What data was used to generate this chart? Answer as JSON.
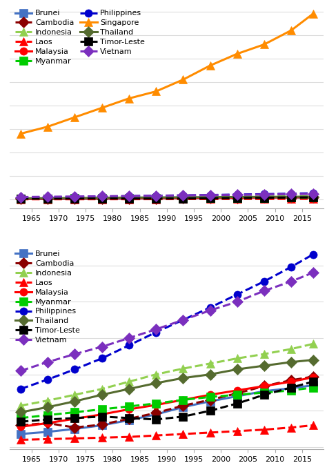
{
  "years": [
    1963,
    1968,
    1973,
    1978,
    1983,
    1988,
    1993,
    1998,
    2003,
    2008,
    2013,
    2017
  ],
  "series_a": {
    "Brunei": [
      18,
      21,
      25,
      30,
      37,
      45,
      55,
      63,
      70,
      77,
      81,
      85
    ],
    "Cambodia": [
      30,
      33,
      27,
      31,
      39,
      47,
      57,
      65,
      74,
      84,
      92,
      97
    ],
    "Indonesia": [
      57,
      64,
      72,
      80,
      90,
      100,
      108,
      115,
      122,
      128,
      135,
      142
    ],
    "Laos": [
      10,
      11,
      12,
      13,
      14,
      16,
      18,
      20,
      22,
      24,
      27,
      30
    ],
    "Malaysia": [
      28,
      33,
      39,
      45,
      52,
      58,
      65,
      72,
      78,
      84,
      90,
      96
    ],
    "Myanmar": [
      40,
      44,
      48,
      52,
      56,
      60,
      65,
      69,
      72,
      75,
      78,
      82
    ],
    "Philippines": [
      80,
      93,
      107,
      122,
      140,
      158,
      175,
      192,
      210,
      228,
      248,
      265
    ],
    "Singapore": [
      2800,
      3100,
      3500,
      3900,
      4300,
      4600,
      5100,
      5700,
      6200,
      6600,
      7200,
      7900
    ],
    "Thailand": [
      48,
      55,
      63,
      72,
      80,
      88,
      95,
      100,
      107,
      112,
      117,
      120
    ],
    "Timor-Leste": [
      35,
      38,
      40,
      42,
      40,
      38,
      42,
      50,
      60,
      72,
      82,
      90
    ],
    "Vietnam": [
      105,
      117,
      128,
      138,
      150,
      162,
      175,
      188,
      200,
      215,
      228,
      240
    ]
  },
  "series_b": {
    "Brunei": [
      18,
      21,
      25,
      30,
      37,
      45,
      55,
      63,
      70,
      77,
      81,
      85
    ],
    "Cambodia": [
      30,
      33,
      27,
      31,
      39,
      47,
      57,
      65,
      74,
      84,
      92,
      97
    ],
    "Indonesia": [
      57,
      64,
      72,
      80,
      90,
      100,
      108,
      115,
      122,
      128,
      135,
      142
    ],
    "Laos": [
      10,
      11,
      12,
      13,
      14,
      16,
      18,
      20,
      22,
      24,
      27,
      30
    ],
    "Malaysia": [
      28,
      33,
      39,
      45,
      52,
      58,
      65,
      72,
      78,
      84,
      90,
      96
    ],
    "Myanmar": [
      40,
      44,
      48,
      52,
      56,
      60,
      65,
      69,
      72,
      75,
      78,
      82
    ],
    "Philippines": [
      80,
      93,
      107,
      122,
      140,
      158,
      175,
      192,
      210,
      228,
      248,
      265
    ],
    "Thailand": [
      48,
      55,
      63,
      72,
      80,
      88,
      95,
      100,
      107,
      112,
      117,
      120
    ],
    "Timor-Leste": [
      35,
      38,
      40,
      42,
      40,
      38,
      42,
      50,
      60,
      72,
      82,
      90
    ],
    "Vietnam": [
      105,
      117,
      128,
      138,
      150,
      162,
      175,
      188,
      200,
      215,
      228,
      240
    ]
  },
  "styles": {
    "Brunei": {
      "color": "#4472C4",
      "linestyle": "-",
      "marker": "s",
      "dashes": false
    },
    "Cambodia": {
      "color": "#8B0000",
      "linestyle": "--",
      "marker": "D",
      "dashes": true
    },
    "Indonesia": {
      "color": "#92D050",
      "linestyle": "--",
      "marker": "^",
      "dashes": true
    },
    "Laos": {
      "color": "#FF0000",
      "linestyle": "--",
      "marker": "^",
      "dashes": true
    },
    "Malaysia": {
      "color": "#FF0000",
      "linestyle": "-",
      "marker": "o",
      "dashes": false
    },
    "Myanmar": {
      "color": "#00CC00",
      "linestyle": "--",
      "marker": "s",
      "dashes": true
    },
    "Philippines": {
      "color": "#0000CD",
      "linestyle": "--",
      "marker": "o",
      "dashes": true
    },
    "Singapore": {
      "color": "#FF8C00",
      "linestyle": "-",
      "marker": "^",
      "dashes": false
    },
    "Thailand": {
      "color": "#556B2F",
      "linestyle": "-",
      "marker": "D",
      "dashes": false
    },
    "Timor-Leste": {
      "color": "#000000",
      "linestyle": "--",
      "marker": "s",
      "dashes": true
    },
    "Vietnam": {
      "color": "#7B2FBE",
      "linestyle": "--",
      "marker": "D",
      "dashes": true
    }
  },
  "legend_col1_a": [
    "Brunei",
    "Indonesia",
    "Malaysia",
    "Philippines",
    "Thailand",
    "Vietnam"
  ],
  "legend_col2_a": [
    "Cambodia",
    "Laos",
    "Myanmar",
    "Singapore",
    "Timor-Leste"
  ],
  "legend_b": [
    "Brunei",
    "Cambodia",
    "Indonesia",
    "Laos",
    "Malaysia",
    "Myanmar",
    "Philippines",
    "Thailand",
    "Timor-Leste",
    "Vietnam"
  ],
  "xticks": [
    1965,
    1970,
    1975,
    1980,
    1985,
    1990,
    1995,
    2000,
    2005,
    2010,
    2015
  ],
  "bg_color": "#FFFFFF",
  "grid_color": "#DCDCDC"
}
